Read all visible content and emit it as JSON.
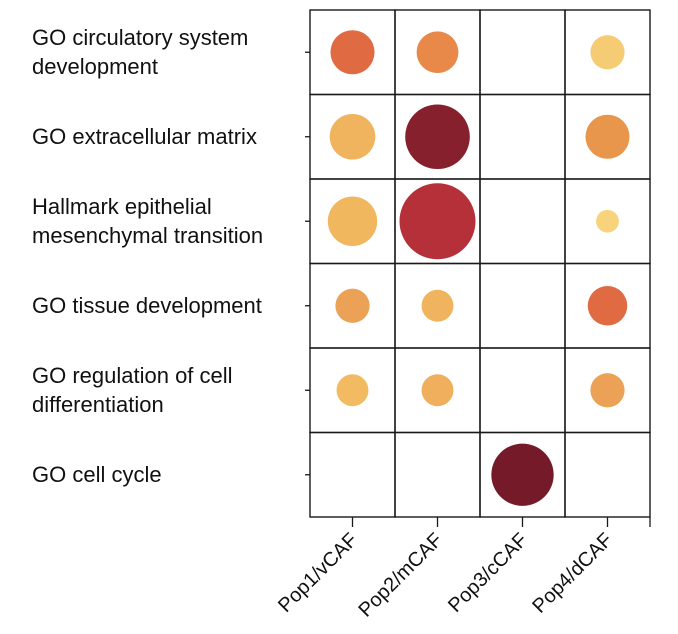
{
  "chart_data": {
    "type": "heatmap",
    "rows": [
      [
        "GO circulatory system",
        "development"
      ],
      [
        "GO extracellular matrix"
      ],
      [
        "Hallmark epithelial",
        "mesenchymal transition"
      ],
      [
        "GO tissue development"
      ],
      [
        "GO regulation of cell",
        "differentiation"
      ],
      [
        "GO cell cycle"
      ]
    ],
    "columns": [
      "Pop1/vCAF",
      "Pop2/mCAF",
      "Pop3/cCAF",
      "Pop4/dCAF"
    ],
    "cells": [
      {
        "row": 0,
        "col": 0,
        "size": 0.58,
        "color": "#e06a42"
      },
      {
        "row": 0,
        "col": 1,
        "size": 0.55,
        "color": "#e8894a"
      },
      {
        "row": 0,
        "col": 3,
        "size": 0.45,
        "color": "#f5cb73"
      },
      {
        "row": 1,
        "col": 0,
        "size": 0.6,
        "color": "#f0b35e"
      },
      {
        "row": 1,
        "col": 1,
        "size": 0.85,
        "color": "#86202d"
      },
      {
        "row": 1,
        "col": 2,
        "size": 0.0,
        "color": "#ffffff"
      },
      {
        "row": 1,
        "col": 3,
        "size": 0.58,
        "color": "#e8964c"
      },
      {
        "row": 2,
        "col": 0,
        "size": 0.65,
        "color": "#f1b75f"
      },
      {
        "row": 2,
        "col": 1,
        "size": 1.0,
        "color": "#b6303a"
      },
      {
        "row": 2,
        "col": 3,
        "size": 0.3,
        "color": "#f7d37b"
      },
      {
        "row": 3,
        "col": 0,
        "size": 0.45,
        "color": "#eba156"
      },
      {
        "row": 3,
        "col": 1,
        "size": 0.42,
        "color": "#f0b35e"
      },
      {
        "row": 3,
        "col": 2,
        "size": 0.0,
        "color": "#ffffff"
      },
      {
        "row": 3,
        "col": 3,
        "size": 0.52,
        "color": "#e06a42"
      },
      {
        "row": 4,
        "col": 0,
        "size": 0.42,
        "color": "#f2bb62"
      },
      {
        "row": 4,
        "col": 1,
        "size": 0.42,
        "color": "#efaf5c"
      },
      {
        "row": 4,
        "col": 3,
        "size": 0.45,
        "color": "#eba156"
      },
      {
        "row": 5,
        "col": 2,
        "size": 0.82,
        "color": "#741a28"
      }
    ]
  }
}
